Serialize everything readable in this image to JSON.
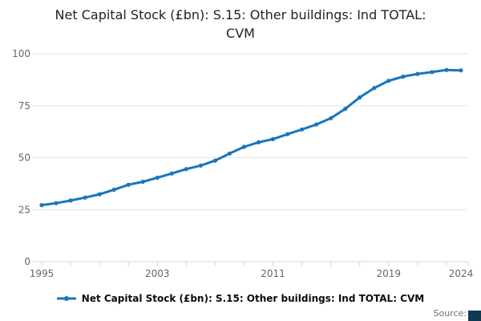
{
  "title": {
    "line1": "Net Capital Stock (£bn): S.15: Other buildings: Ind TOTAL:",
    "line2": "CVM"
  },
  "legend": {
    "label": "Net Capital Stock (£bn): S.15: Other buildings: Ind TOTAL: CVM"
  },
  "source": {
    "label": "Source:"
  },
  "colors": {
    "line": "#1976bc",
    "grid": "#e6e6e6",
    "axis": "#ccd6eb",
    "tick_label": "#666666",
    "title": "#222222",
    "legend_text": "#0b0c0c",
    "corner_box": "#0f3b52"
  },
  "chart_data": {
    "type": "line",
    "title": "Net Capital Stock (£bn): S.15: Other buildings: Ind TOTAL: CVM",
    "x": [
      1995,
      1996,
      1997,
      1998,
      1999,
      2000,
      2001,
      2002,
      2003,
      2004,
      2005,
      2006,
      2007,
      2008,
      2009,
      2010,
      2011,
      2012,
      2013,
      2014,
      2015,
      2016,
      2017,
      2018,
      2019,
      2020,
      2021,
      2022,
      2023,
      2024
    ],
    "series": [
      {
        "name": "Net Capital Stock (£bn): S.15: Other buildings: Ind TOTAL: CVM",
        "values": [
          27.2,
          28.1,
          29.4,
          30.8,
          32.4,
          34.6,
          37.0,
          38.4,
          40.4,
          42.4,
          44.5,
          46.2,
          48.6,
          52.0,
          55.2,
          57.4,
          58.9,
          61.3,
          63.6,
          66.0,
          69.0,
          73.5,
          79.0,
          83.5,
          87.0,
          89.0,
          90.3,
          91.2,
          92.2,
          92.0
        ]
      }
    ],
    "xlabel": "",
    "ylabel": "",
    "xlim": [
      1995,
      2024
    ],
    "ylim": [
      0,
      100
    ],
    "yticks": [
      0,
      25,
      50,
      75,
      100
    ],
    "xticks_labeled": [
      1995,
      2003,
      2011,
      2019,
      2024
    ],
    "minor_xtick_step_years": 2,
    "grid": true,
    "legend_position": "bottom",
    "marker": "dot"
  }
}
